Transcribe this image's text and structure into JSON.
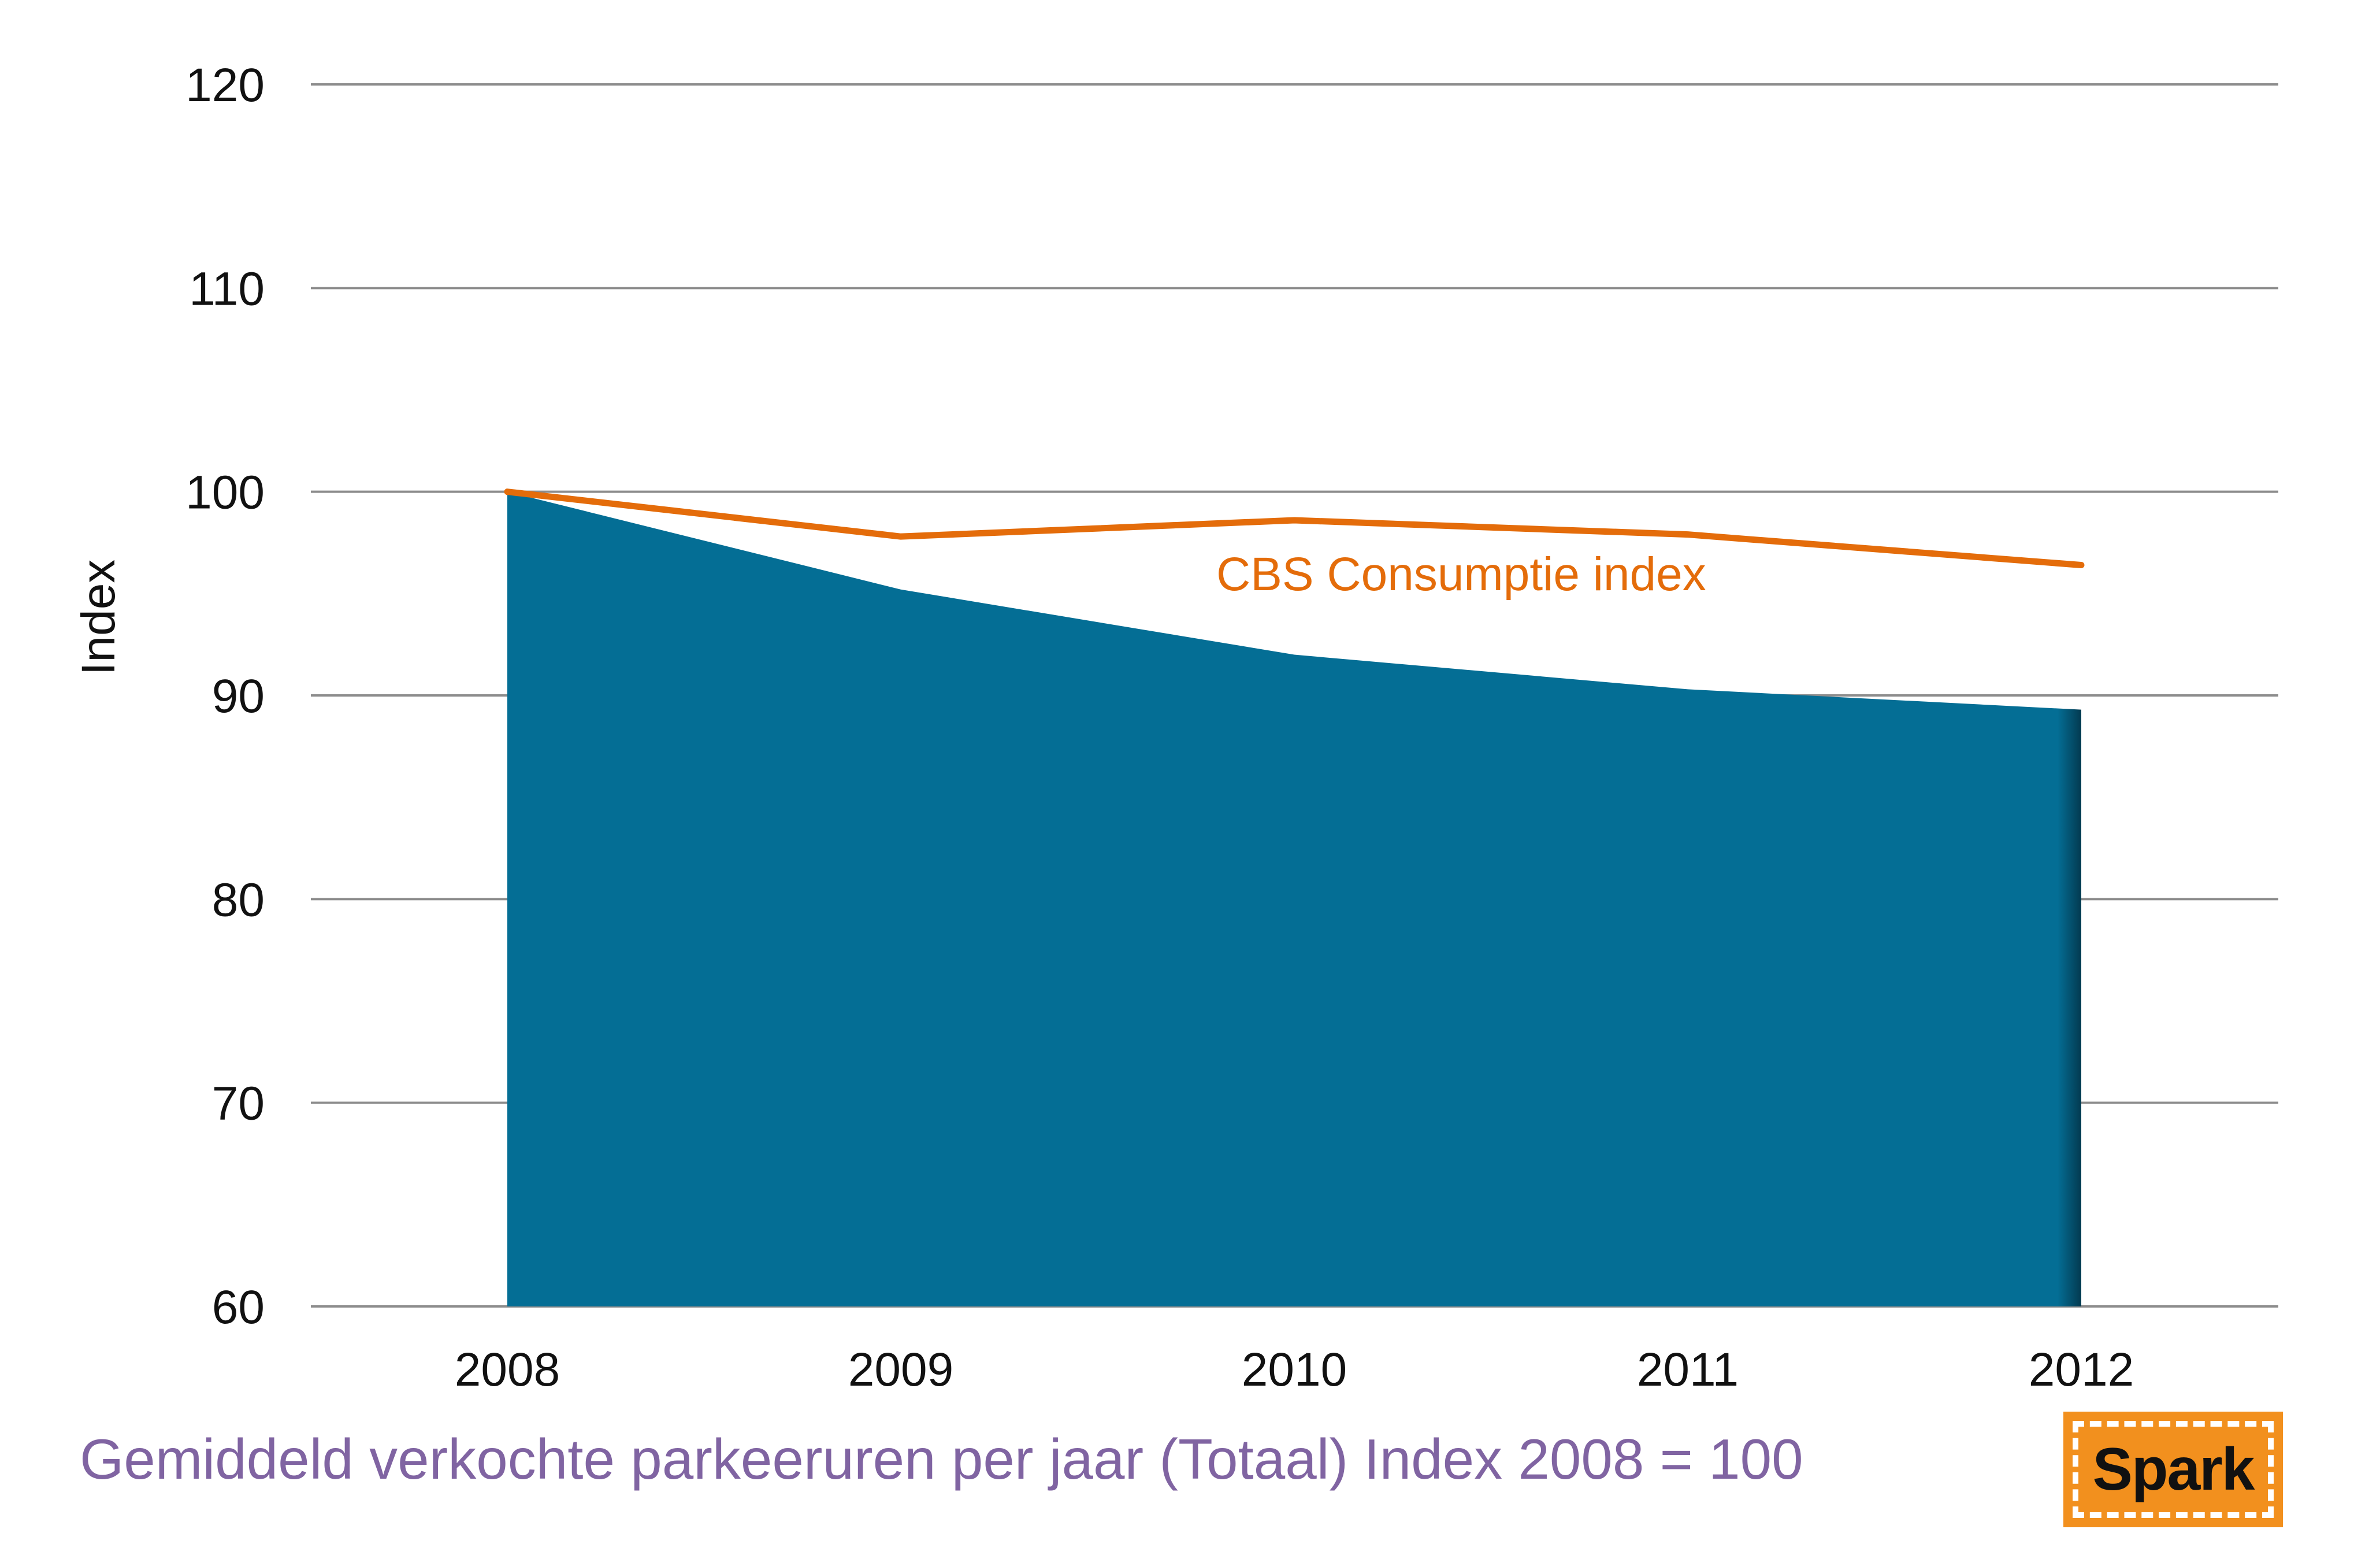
{
  "colors": {
    "area": "#046E95",
    "line": "#E46C0A",
    "grid": "#8C8C8C",
    "footer": "#8064A2",
    "logo_bg": "#F2901E"
  },
  "chart_data": {
    "type": "area",
    "categories": [
      "2008",
      "2009",
      "2010",
      "2011",
      "2012"
    ],
    "series": [
      {
        "kind": "area",
        "values": [
          100,
          95.2,
          92.0,
          90.3,
          89.3
        ]
      },
      {
        "name": "CBS Consumptie index",
        "kind": "line",
        "values": [
          100,
          97.8,
          98.6,
          97.9,
          96.4
        ]
      }
    ],
    "ylabel": "Index",
    "xlabel": "",
    "ylim": [
      60,
      120
    ],
    "yticks": [
      "60",
      "70",
      "80",
      "90",
      "100",
      "110",
      "120"
    ],
    "grid": true,
    "legend": "inline label"
  },
  "footer": {
    "caption": "Gemiddeld verkochte parkeeruren per jaar (Totaal) Index 2008 = 100"
  },
  "logo": {
    "text": "Spark"
  }
}
